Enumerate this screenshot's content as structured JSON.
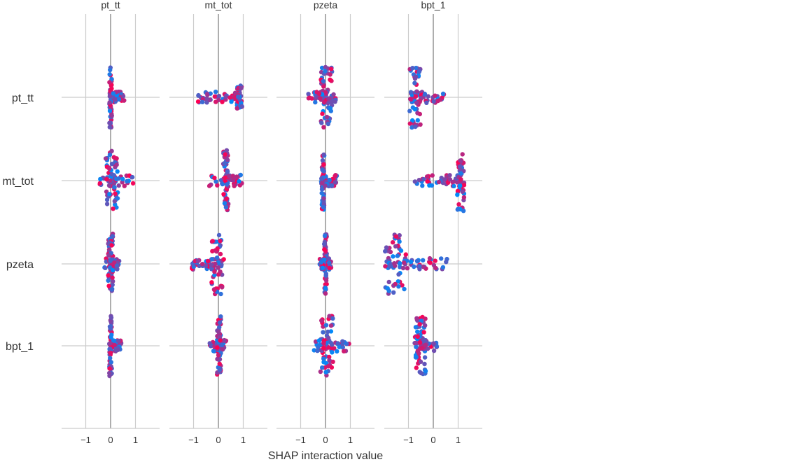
{
  "chart_data": {
    "type": "scatter",
    "subtype": "shap-interaction-beeswarm-matrix",
    "features": [
      "pt_tt",
      "mt_tot",
      "pzeta",
      "bpt_1"
    ],
    "xlabel": "SHAP interaction value",
    "xticks": [
      -1,
      0,
      1
    ],
    "xtick_labels": [
      "−1",
      "0",
      "1"
    ],
    "xlim": [
      -1.0,
      1.0
    ],
    "colors": {
      "low": "#008bfb",
      "high": "#ff0052",
      "grid": "#cccccc",
      "zero_line": "#999999"
    },
    "cells": [
      [
        {
          "min": -0.05,
          "max": 0.55,
          "core": [
            -0.05,
            0.05
          ],
          "height": 0.9
        },
        {
          "min": -0.85,
          "max": 0.95,
          "core": [
            0.75,
            0.95
          ],
          "height": 0.35
        },
        {
          "min": -0.75,
          "max": 0.45,
          "core": [
            -0.2,
            0.3
          ],
          "height": 0.9
        },
        {
          "min": -0.95,
          "max": 0.45,
          "core": [
            -0.95,
            -0.5
          ],
          "height": 0.9
        }
      ],
      [
        {
          "min": -0.45,
          "max": 0.95,
          "core": [
            -0.2,
            0.3
          ],
          "height": 0.9
        },
        {
          "min": -0.4,
          "max": 0.95,
          "core": [
            0.2,
            0.4
          ],
          "height": 0.9
        },
        {
          "min": -0.2,
          "max": 0.45,
          "core": [
            -0.15,
            -0.05
          ],
          "height": 0.9
        },
        {
          "min": -0.75,
          "max": 1.25,
          "core": [
            0.95,
            1.25
          ],
          "height": 0.9
        }
      ],
      [
        {
          "min": -0.25,
          "max": 0.35,
          "core": [
            -0.1,
            0.1
          ],
          "height": 0.9
        },
        {
          "min": -1.1,
          "max": 0.25,
          "core": [
            -0.3,
            0.15
          ],
          "height": 0.9
        },
        {
          "min": -0.25,
          "max": 0.25,
          "core": [
            -0.05,
            0.05
          ],
          "height": 0.9
        },
        {
          "min": -1.95,
          "max": 0.55,
          "core": [
            -1.95,
            -1.1
          ],
          "height": 0.9
        }
      ],
      [
        {
          "min": -0.05,
          "max": 0.45,
          "core": [
            -0.05,
            0.05
          ],
          "height": 0.9
        },
        {
          "min": -0.35,
          "max": 0.35,
          "core": [
            -0.05,
            0.1
          ],
          "height": 0.9
        },
        {
          "min": -0.5,
          "max": 1.0,
          "core": [
            -0.2,
            0.3
          ],
          "height": 0.9
        },
        {
          "min": -0.75,
          "max": 0.15,
          "core": [
            -0.75,
            -0.3
          ],
          "height": 0.9
        }
      ]
    ]
  }
}
